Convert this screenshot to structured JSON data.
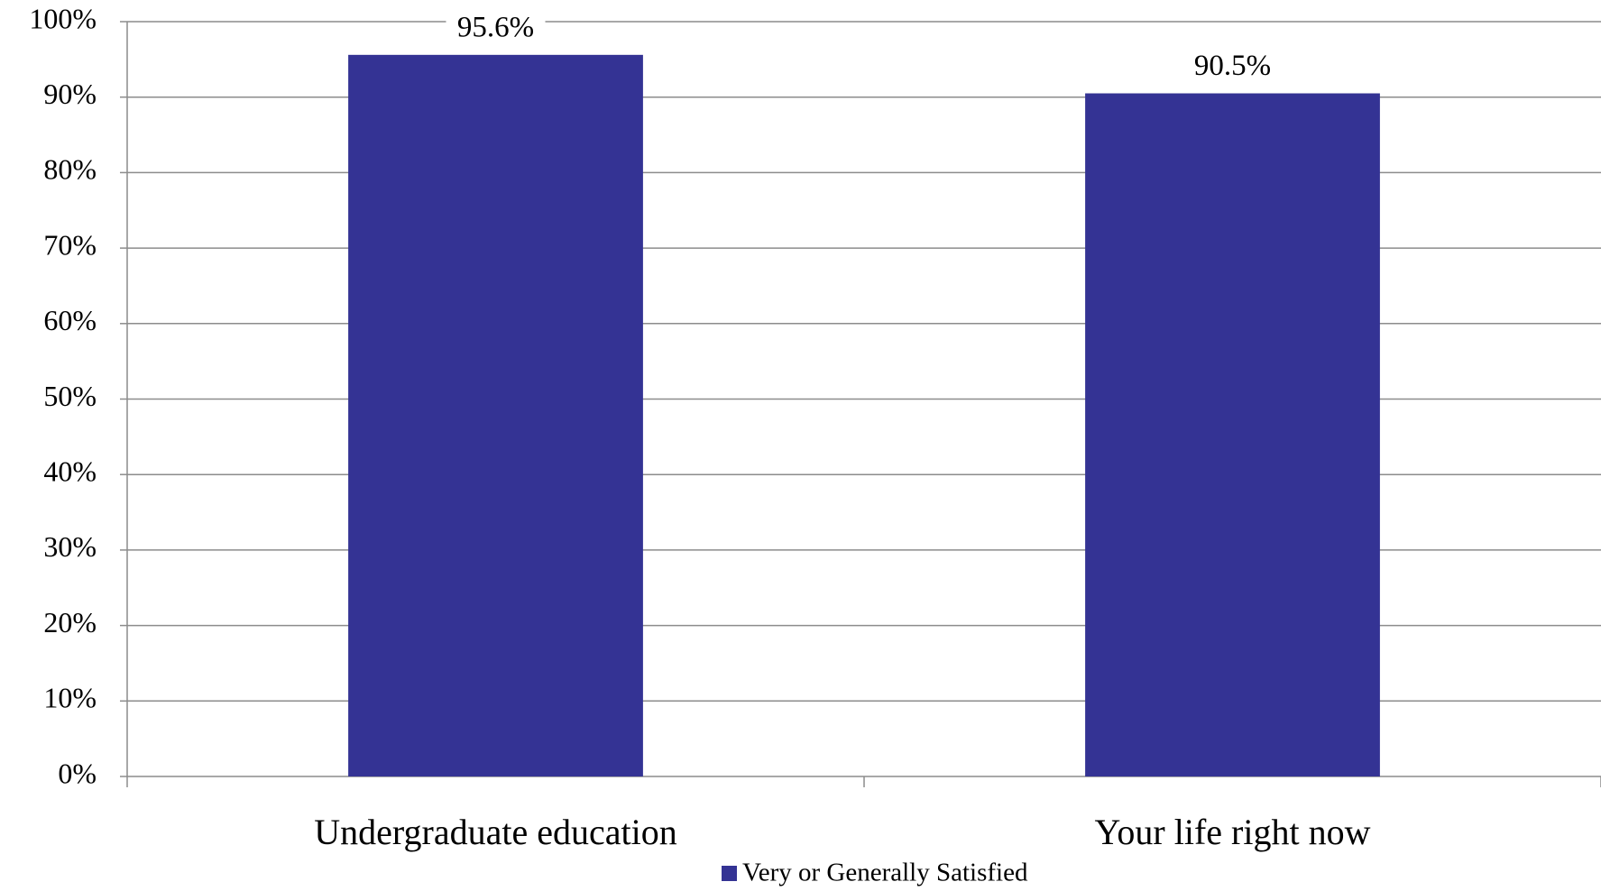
{
  "chart_data": {
    "type": "bar",
    "categories": [
      "Undergraduate education",
      "Your life right now"
    ],
    "series": [
      {
        "name": "Very or Generally Satisfied",
        "color": "#343394",
        "values": [
          95.6,
          90.5
        ],
        "value_labels": [
          "95.6%",
          "90.5%"
        ]
      }
    ],
    "ylim": [
      0,
      100
    ],
    "yticks": [
      {
        "value": 0,
        "label": "0%"
      },
      {
        "value": 10,
        "label": "10%"
      },
      {
        "value": 20,
        "label": "20%"
      },
      {
        "value": 30,
        "label": "30%"
      },
      {
        "value": 40,
        "label": "40%"
      },
      {
        "value": 50,
        "label": "50%"
      },
      {
        "value": 60,
        "label": "60%"
      },
      {
        "value": 70,
        "label": "70%"
      },
      {
        "value": 80,
        "label": "80%"
      },
      {
        "value": 90,
        "label": "90%"
      },
      {
        "value": 100,
        "label": "100%"
      }
    ],
    "grid": true,
    "legend": "bottom"
  }
}
